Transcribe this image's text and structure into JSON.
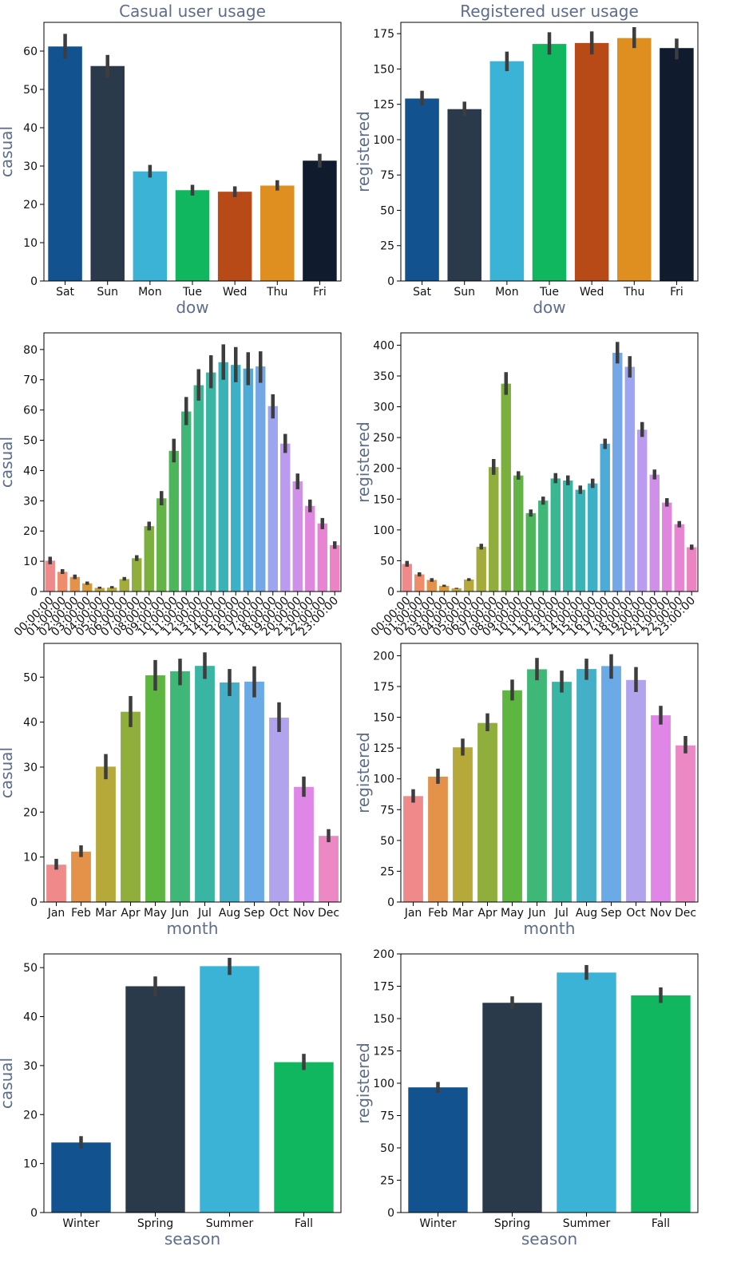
{
  "chart_data": [
    {
      "type": "bar",
      "title": "Casual user usage",
      "xlabel": "dow",
      "ylabel": "casual",
      "categories": [
        "Sat",
        "Sun",
        "Mon",
        "Tue",
        "Wed",
        "Thu",
        "Fri"
      ],
      "values": [
        61.2,
        56.1,
        28.6,
        23.7,
        23.3,
        24.9,
        31.4
      ],
      "errors": [
        [
          58.0,
          64.5
        ],
        [
          53.0,
          59.0
        ],
        [
          27.0,
          30.3
        ],
        [
          22.3,
          25.1
        ],
        [
          21.9,
          24.7
        ],
        [
          23.6,
          26.3
        ],
        [
          29.6,
          33.2
        ]
      ],
      "ylim": [
        0,
        67.5
      ],
      "yticks": [
        0,
        10,
        20,
        30,
        40,
        50,
        60
      ],
      "colors": [
        "#12538f",
        "#2b3a4b",
        "#3bb3d7",
        "#10b75f",
        "#b84a18",
        "#de8f1f",
        "#101c2d"
      ],
      "xtick_rotation": 0
    },
    {
      "type": "bar",
      "title": "Registered user usage",
      "xlabel": "dow",
      "ylabel": "registered",
      "categories": [
        "Sat",
        "Sun",
        "Mon",
        "Tue",
        "Wed",
        "Thu",
        "Fri"
      ],
      "values": [
        129.1,
        121.6,
        155.5,
        167.7,
        168.4,
        171.9,
        164.8
      ],
      "errors": [
        [
          124.3,
          134.6
        ],
        [
          116.8,
          126.9
        ],
        [
          148.5,
          162.3
        ],
        [
          160.2,
          176.0
        ],
        [
          160.3,
          176.6
        ],
        [
          164.8,
          179.6
        ],
        [
          156.8,
          171.5
        ]
      ],
      "ylim": [
        0,
        183
      ],
      "yticks": [
        0,
        25,
        50,
        75,
        100,
        125,
        150,
        175
      ],
      "colors": [
        "#12538f",
        "#2b3a4b",
        "#3bb3d7",
        "#10b75f",
        "#b84a18",
        "#de8f1f",
        "#101c2d"
      ],
      "xtick_rotation": 0
    },
    {
      "type": "bar",
      "title": "",
      "xlabel": "",
      "ylabel": "casual",
      "categories": [
        "00:00:00",
        "01:00:00",
        "02:00:00",
        "03:00:00",
        "04:00:00",
        "05:00:00",
        "06:00:00",
        "07:00:00",
        "08:00:00",
        "09:00:00",
        "10:00:00",
        "11:00:00",
        "12:00:00",
        "13:00:00",
        "14:00:00",
        "15:00:00",
        "16:00:00",
        "17:00:00",
        "18:00:00",
        "19:00:00",
        "20:00:00",
        "21:00:00",
        "22:00:00",
        "23:00:00"
      ],
      "values": [
        10.2,
        6.5,
        4.8,
        2.7,
        1.2,
        1.3,
        4.1,
        11.0,
        21.6,
        30.8,
        46.5,
        59.5,
        68.2,
        72.4,
        75.8,
        74.9,
        73.7,
        74.4,
        61.3,
        48.9,
        36.4,
        28.3,
        22.5,
        15.3
      ],
      "errors": [
        [
          9.0,
          11.5
        ],
        [
          5.8,
          7.4
        ],
        [
          4.1,
          5.6
        ],
        [
          2.2,
          3.3
        ],
        [
          0.9,
          1.6
        ],
        [
          1.0,
          1.8
        ],
        [
          3.6,
          4.8
        ],
        [
          10.1,
          12.0
        ],
        [
          20.2,
          23.1
        ],
        [
          28.5,
          33.2
        ],
        [
          42.7,
          50.5
        ],
        [
          55.0,
          64.3
        ],
        [
          63.1,
          73.5
        ],
        [
          67.2,
          78.1
        ],
        [
          70.0,
          81.7
        ],
        [
          69.2,
          80.8
        ],
        [
          68.2,
          79.1
        ],
        [
          69.0,
          79.4
        ],
        [
          57.2,
          65.2
        ],
        [
          45.8,
          52.1
        ],
        [
          33.8,
          39.0
        ],
        [
          26.2,
          30.4
        ],
        [
          20.6,
          24.3
        ],
        [
          14.1,
          16.6
        ]
      ],
      "ylim": [
        0,
        85.5
      ],
      "yticks": [
        0,
        10,
        20,
        30,
        40,
        50,
        60,
        70,
        80
      ],
      "colors": [
        "#f08a8a",
        "#ef8c6a",
        "#e4924a",
        "#d79a3a",
        "#c9a23a",
        "#b7a83a",
        "#a3ab3a",
        "#8fae3b",
        "#7bb03f",
        "#63b347",
        "#4db55a",
        "#3fb777",
        "#39b790",
        "#38b6a3",
        "#39b3b5",
        "#3bb0c6",
        "#4dabd8",
        "#73a7e8",
        "#9da4f0",
        "#bb9bef",
        "#cf90e8",
        "#df86de",
        "#e785d2",
        "#ec84c4"
      ],
      "xtick_rotation": -45
    },
    {
      "type": "bar",
      "title": "",
      "xlabel": "",
      "ylabel": "registered",
      "categories": [
        "00:00:00",
        "01:00:00",
        "02:00:00",
        "03:00:00",
        "04:00:00",
        "05:00:00",
        "06:00:00",
        "07:00:00",
        "08:00:00",
        "09:00:00",
        "10:00:00",
        "11:00:00",
        "12:00:00",
        "13:00:00",
        "14:00:00",
        "15:00:00",
        "16:00:00",
        "17:00:00",
        "18:00:00",
        "19:00:00",
        "20:00:00",
        "21:00:00",
        "22:00:00",
        "23:00:00"
      ],
      "values": [
        44.8,
        27.9,
        18.8,
        9.2,
        5.1,
        19.4,
        72.6,
        202.0,
        337.5,
        188.4,
        127.3,
        147.6,
        183.6,
        180.2,
        165.2,
        175.5,
        240.0,
        387.7,
        364.9,
        262.8,
        189.7,
        144.4,
        109.3,
        71.9
      ],
      "errors": [
        [
          40.2,
          49.7
        ],
        [
          24.4,
          31.2
        ],
        [
          15.8,
          21.7
        ],
        [
          7.6,
          11.0
        ],
        [
          4.2,
          6.0
        ],
        [
          17.2,
          21.6
        ],
        [
          68.2,
          77.5
        ],
        [
          189.5,
          215.2
        ],
        [
          319.4,
          356.2
        ],
        [
          181.6,
          195.3
        ],
        [
          121.6,
          133.2
        ],
        [
          141.0,
          154.1
        ],
        [
          175.9,
          192.3
        ],
        [
          172.6,
          188.5
        ],
        [
          158.4,
          172.1
        ],
        [
          168.1,
          183.3
        ],
        [
          231.4,
          248.2
        ],
        [
          370.3,
          405.3
        ],
        [
          347.5,
          382.2
        ],
        [
          251.0,
          275.2
        ],
        [
          182.0,
          198.1
        ],
        [
          137.9,
          151.6
        ],
        [
          104.1,
          114.4
        ],
        [
          67.8,
          76.2
        ]
      ],
      "ylim": [
        0,
        420
      ],
      "yticks": [
        0,
        50,
        100,
        150,
        200,
        250,
        300,
        350,
        400
      ],
      "colors": [
        "#f08a8a",
        "#ef8c6a",
        "#e4924a",
        "#d79a3a",
        "#c9a23a",
        "#b7a83a",
        "#a3ab3a",
        "#8fae3b",
        "#7bb03f",
        "#63b347",
        "#4db55a",
        "#3fb777",
        "#39b790",
        "#38b6a3",
        "#39b3b5",
        "#3bb0c6",
        "#4dabd8",
        "#73a7e8",
        "#9da4f0",
        "#bb9bef",
        "#cf90e8",
        "#df86de",
        "#e785d2",
        "#ec84c4"
      ],
      "xtick_rotation": -45
    },
    {
      "type": "bar",
      "title": "",
      "xlabel": "month",
      "ylabel": "casual",
      "categories": [
        "Jan",
        "Feb",
        "Mar",
        "Apr",
        "May",
        "Jun",
        "Jul",
        "Aug",
        "Sep",
        "Oct",
        "Nov",
        "Dec"
      ],
      "values": [
        8.3,
        11.2,
        30.1,
        42.3,
        50.4,
        51.3,
        52.5,
        48.8,
        49.0,
        41.0,
        25.6,
        14.7
      ],
      "errors": [
        [
          7.2,
          9.6
        ],
        [
          10.0,
          12.6
        ],
        [
          27.3,
          32.9
        ],
        [
          38.9,
          45.8
        ],
        [
          47.0,
          53.8
        ],
        [
          48.2,
          54.1
        ],
        [
          49.6,
          55.5
        ],
        [
          45.8,
          51.8
        ],
        [
          45.5,
          52.4
        ],
        [
          37.8,
          44.4
        ],
        [
          23.4,
          27.9
        ],
        [
          13.3,
          16.2
        ]
      ],
      "ylim": [
        0,
        57.5
      ],
      "yticks": [
        0,
        10,
        20,
        30,
        40,
        50
      ],
      "colors": [
        "#f08a8a",
        "#e4924a",
        "#b7a83a",
        "#8fae3b",
        "#5db63f",
        "#3fb777",
        "#38b6a3",
        "#45afc8",
        "#6aaae7",
        "#b2a3ed",
        "#df86e6",
        "#ec88c4"
      ],
      "xtick_rotation": 0
    },
    {
      "type": "bar",
      "title": "",
      "xlabel": "month",
      "ylabel": "registered",
      "categories": [
        "Jan",
        "Feb",
        "Mar",
        "Apr",
        "May",
        "Jun",
        "Jul",
        "Aug",
        "Sep",
        "Oct",
        "Nov",
        "Dec"
      ],
      "values": [
        86.0,
        101.8,
        125.6,
        145.4,
        171.9,
        189.0,
        178.8,
        189.2,
        191.6,
        180.3,
        151.6,
        127.2
      ],
      "errors": [
        [
          80.7,
          91.6
        ],
        [
          96.0,
          108.3
        ],
        [
          118.9,
          132.7
        ],
        [
          138.7,
          153.2
        ],
        [
          163.7,
          180.6
        ],
        [
          180.1,
          198.2
        ],
        [
          170.1,
          187.9
        ],
        [
          180.4,
          197.6
        ],
        [
          181.3,
          201.2
        ],
        [
          170.5,
          190.8
        ],
        [
          144.1,
          159.3
        ],
        [
          120.7,
          134.8
        ]
      ],
      "ylim": [
        0,
        210
      ],
      "yticks": [
        0,
        25,
        50,
        75,
        100,
        125,
        150,
        175,
        200
      ],
      "colors": [
        "#f08a8a",
        "#e4924a",
        "#b7a83a",
        "#8fae3b",
        "#5db63f",
        "#3fb777",
        "#38b6a3",
        "#45afc8",
        "#6aaae7",
        "#b2a3ed",
        "#df86e6",
        "#ec88c4"
      ],
      "xtick_rotation": 0
    },
    {
      "type": "bar",
      "title": "",
      "xlabel": "season",
      "ylabel": "casual",
      "categories": [
        "Winter",
        "Spring",
        "Summer",
        "Fall"
      ],
      "values": [
        14.3,
        46.2,
        50.3,
        30.7
      ],
      "errors": [
        [
          13.1,
          15.6
        ],
        [
          44.1,
          48.2
        ],
        [
          48.5,
          52.0
        ],
        [
          29.1,
          32.4
        ]
      ],
      "ylim": [
        0,
        52.8
      ],
      "yticks": [
        0,
        10,
        20,
        30,
        40,
        50
      ],
      "colors": [
        "#12538f",
        "#2b3a4b",
        "#3bb3d7",
        "#10b75f"
      ],
      "xtick_rotation": 0
    },
    {
      "type": "bar",
      "title": "",
      "xlabel": "season",
      "ylabel": "registered",
      "categories": [
        "Winter",
        "Spring",
        "Summer",
        "Fall"
      ],
      "values": [
        96.8,
        162.2,
        185.6,
        167.9
      ],
      "errors": [
        [
          92.7,
          101.0
        ],
        [
          157.4,
          167.2
        ],
        [
          180.0,
          191.4
        ],
        [
          162.1,
          174.1
        ]
      ],
      "ylim": [
        0,
        200
      ],
      "yticks": [
        0,
        25,
        50,
        75,
        100,
        125,
        150,
        175,
        200
      ],
      "colors": [
        "#12538f",
        "#2b3a4b",
        "#3bb3d7",
        "#10b75f"
      ],
      "xtick_rotation": 0
    }
  ]
}
